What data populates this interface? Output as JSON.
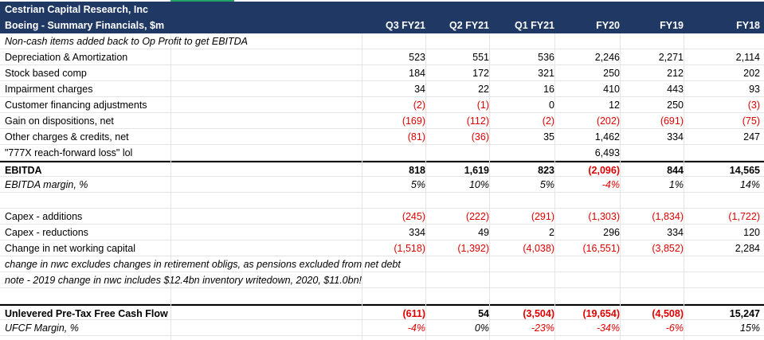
{
  "header": {
    "company": "Cestrian Capital Research, Inc",
    "subtitle": "Boeing - Summary Financials, $m",
    "columns": [
      "Q3 FY21",
      "Q2 FY21",
      "Q1 FY21",
      "FY20",
      "FY19",
      "FY18"
    ]
  },
  "rows": [
    {
      "label": "Non-cash items added back to Op Profit to get EBITDA",
      "style": "italic",
      "values": []
    },
    {
      "label": "Depreciation & Amortization",
      "values": [
        "523",
        "551",
        "536",
        "2,246",
        "2,271",
        "2,114"
      ]
    },
    {
      "label": "Stock based comp",
      "values": [
        "184",
        "172",
        "321",
        "250",
        "212",
        "202"
      ]
    },
    {
      "label": "Impairment charges",
      "values": [
        "34",
        "22",
        "16",
        "410",
        "443",
        "93"
      ]
    },
    {
      "label": "Customer financing adjustments",
      "values": [
        "(2)",
        "(1)",
        "0",
        "12",
        "250",
        "(3)"
      ]
    },
    {
      "label": "Gain on dispositions, net",
      "values": [
        "(169)",
        "(112)",
        "(2)",
        "(202)",
        "(691)",
        "(75)"
      ]
    },
    {
      "label": "Other charges & credits, net",
      "values": [
        "(81)",
        "(36)",
        "35",
        "1,462",
        "334",
        "247"
      ]
    },
    {
      "label": "\"777X reach-forward loss\" lol",
      "values": [
        "",
        "",
        "",
        "6,493",
        "",
        ""
      ]
    },
    {
      "label": "EBITDA",
      "style": "bold topline",
      "values": [
        "818",
        "1,619",
        "823",
        "(2,096)",
        "844",
        "14,565"
      ]
    },
    {
      "label": "EBITDA margin, %",
      "style": "italic",
      "values": [
        "5%",
        "10%",
        "5%",
        "-4%",
        "1%",
        "14%"
      ]
    },
    {
      "label": "",
      "values": []
    },
    {
      "label": "Capex - additions",
      "values": [
        "(245)",
        "(222)",
        "(291)",
        "(1,303)",
        "(1,834)",
        "(1,722)"
      ]
    },
    {
      "label": "Capex - reductions",
      "values": [
        "334",
        "49",
        "2",
        "296",
        "334",
        "120"
      ]
    },
    {
      "label": "Change in net working capital",
      "values": [
        "(1,518)",
        "(1,392)",
        "(4,038)",
        "(16,551)",
        "(3,852)",
        "2,284"
      ]
    },
    {
      "label": "change in nwc excludes changes in retirement obligs, as pensions excluded from net debt",
      "style": "italic",
      "values": []
    },
    {
      "label": "note - 2019 change in nwc includes $12.4bn inventory writedown, 2020, $11.0bn!",
      "style": "italic",
      "values": []
    },
    {
      "label": "",
      "values": []
    },
    {
      "label": "Unlevered Pre-Tax Free Cash Flow",
      "style": "bold topline",
      "values": [
        "(611)",
        "54",
        "(3,504)",
        "(19,654)",
        "(4,508)",
        "15,247"
      ]
    },
    {
      "label": "UFCF Margin, %",
      "style": "italic",
      "values": [
        "-4%",
        "0%",
        "-23%",
        "-34%",
        "-6%",
        "15%"
      ]
    }
  ]
}
